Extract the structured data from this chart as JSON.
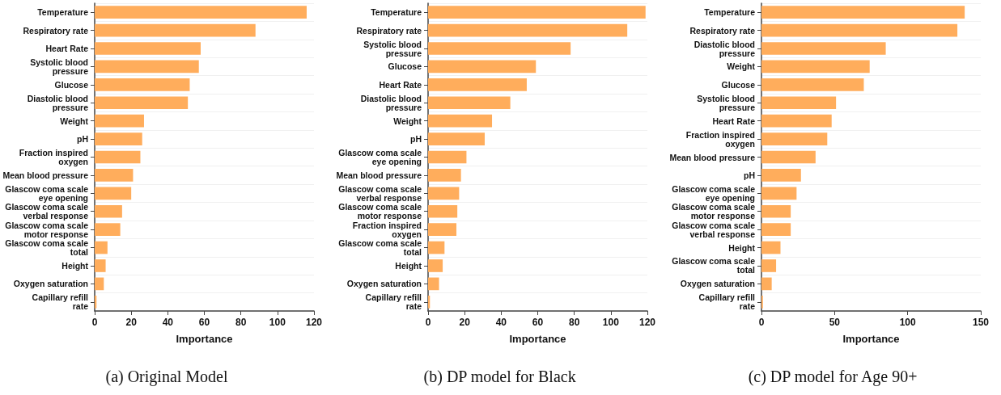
{
  "chart_data": [
    {
      "type": "bar",
      "orientation": "horizontal",
      "xlabel": "Importance",
      "annotations": [
        "(a) Original Model"
      ],
      "categories": [
        "Temperature",
        "Respiratory rate",
        "Heart Rate",
        "Systolic blood\npressure",
        "Glucose",
        "Diastolic blood\npressure",
        "Weight",
        "pH",
        "Fraction inspired\noxygen",
        "Mean blood pressure",
        "Glascow coma scale\neye opening",
        "Glascow coma scale\nverbal response",
        "Glascow coma scale\nmotor response",
        "Glascow coma scale\ntotal",
        "Height",
        "Oxygen saturation",
        "Capillary refill\nrate"
      ],
      "values": [
        116,
        88,
        58,
        57,
        52,
        51,
        27,
        26,
        25,
        21,
        20,
        15,
        14,
        7,
        6,
        5,
        1
      ],
      "color": "#ffad5c",
      "xlim": [
        0,
        120
      ],
      "xticks": [
        0,
        20,
        40,
        60,
        80,
        100,
        120
      ],
      "grid": "y"
    },
    {
      "type": "bar",
      "orientation": "horizontal",
      "xlabel": "Importance",
      "annotations": [
        "(b) DP model for Black"
      ],
      "categories": [
        "Temperature",
        "Respiratory rate",
        "Systolic blood\npressure",
        "Glucose",
        "Heart Rate",
        "Diastolic blood\npressure",
        "Weight",
        "pH",
        "Glascow coma scale\neye opening",
        "Mean blood pressure",
        "Glascow coma scale\nverbal response",
        "Glascow coma scale\nmotor response",
        "Fraction inspired\noxygen",
        "Glascow coma scale\ntotal",
        "Height",
        "Oxygen saturation",
        "Capillary refill\nrate"
      ],
      "values": [
        119,
        109,
        78,
        59,
        54,
        45,
        35,
        31,
        21,
        18,
        17,
        16,
        15.5,
        9,
        8,
        6,
        1
      ],
      "color": "#ffad5c",
      "xlim": [
        0,
        120
      ],
      "xticks": [
        0,
        20,
        40,
        60,
        80,
        100,
        120
      ],
      "grid": "y"
    },
    {
      "type": "bar",
      "orientation": "horizontal",
      "xlabel": "Importance",
      "annotations": [
        "(c) DP model for Age 90+"
      ],
      "categories": [
        "Temperature",
        "Respiratory rate",
        "Diastolic blood\npressure",
        "Weight",
        "Glucose",
        "Systolic blood\npressure",
        "Heart Rate",
        "Fraction inspired\noxygen",
        "Mean blood pressure",
        "pH",
        "Glascow coma scale\neye opening",
        "Glascow coma scale\nmotor response",
        "Glascow coma scale\nverbal response",
        "Height",
        "Glascow coma scale\ntotal",
        "Oxygen saturation",
        "Capillary refill\nrate"
      ],
      "values": [
        139,
        134,
        85,
        74,
        70,
        51,
        48,
        45,
        37,
        27,
        24,
        20,
        20,
        13,
        10,
        7,
        1
      ],
      "color": "#ffad5c",
      "xlim": [
        0,
        150
      ],
      "xticks": [
        0,
        50,
        100,
        150
      ],
      "grid": "y"
    }
  ]
}
